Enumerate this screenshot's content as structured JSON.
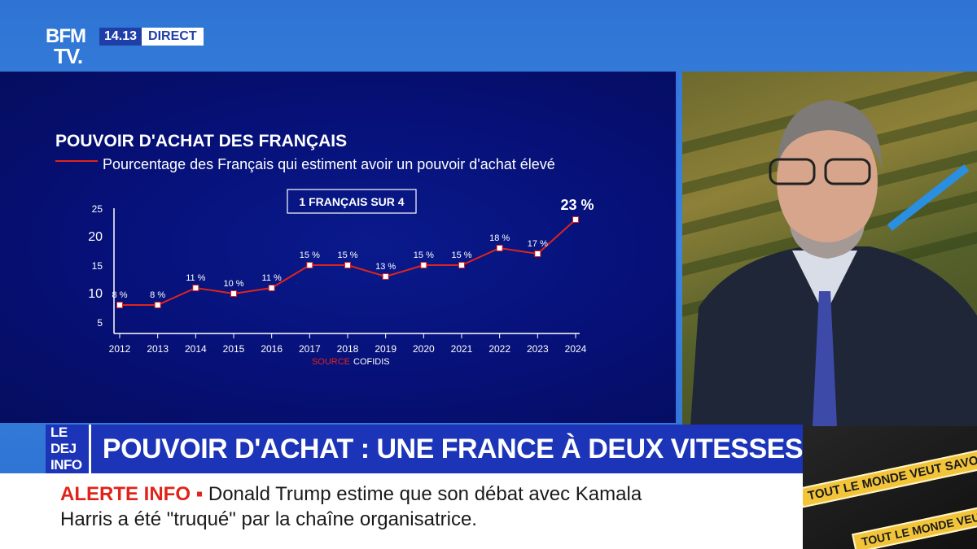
{
  "channel": {
    "logo_line1": "BFM",
    "logo_line2": "TV.",
    "time": "14.13",
    "live_label": "DIRECT"
  },
  "headline": {
    "show": "LE DEJ INFO",
    "text": "POUVOIR D'ACHAT : UNE FRANCE À DEUX VITESSES"
  },
  "ticker": {
    "label": "ALERTE INFO",
    "separator": "▪",
    "line1": "Donald Trump estime que son débat avec Kamala",
    "line2": "Harris a été \"truqué\" par la chaîne organisatrice."
  },
  "promo": {
    "tag1": "TOUT LE MONDE VEUT SAVOIR",
    "tag2": "TOUT LE MONDE VEUT SAVOIR"
  },
  "colors": {
    "panel_bg": "#061077",
    "line": "#e0241b",
    "accent_blue": "#1b34b8",
    "alert_red": "#e0241b"
  },
  "chart_data": {
    "type": "line",
    "title": "POUVOIR D'ACHAT DES FRANÇAIS",
    "subtitle": "Pourcentage des Français qui estiment avoir un pouvoir d'achat élevé",
    "annotation": "1 FRANÇAIS SUR 4",
    "source_label": "SOURCE",
    "source": "COFIDIS",
    "x": [
      "2012",
      "2013",
      "2014",
      "2015",
      "2016",
      "2017",
      "2018",
      "2019",
      "2020",
      "2021",
      "2022",
      "2023",
      "2024"
    ],
    "values": [
      8,
      8,
      11,
      10,
      11,
      15,
      15,
      13,
      15,
      15,
      18,
      17,
      23
    ],
    "labels": [
      "8 %",
      "8 %",
      "11 %",
      "10 %",
      "11 %",
      "15 %",
      "15 %",
      "13 %",
      "15 %",
      "15 %",
      "18 %",
      "17 %",
      "23 %"
    ],
    "yticks": [
      5,
      10,
      15,
      20,
      25
    ],
    "ylim": [
      3,
      25
    ],
    "grid": false
  }
}
